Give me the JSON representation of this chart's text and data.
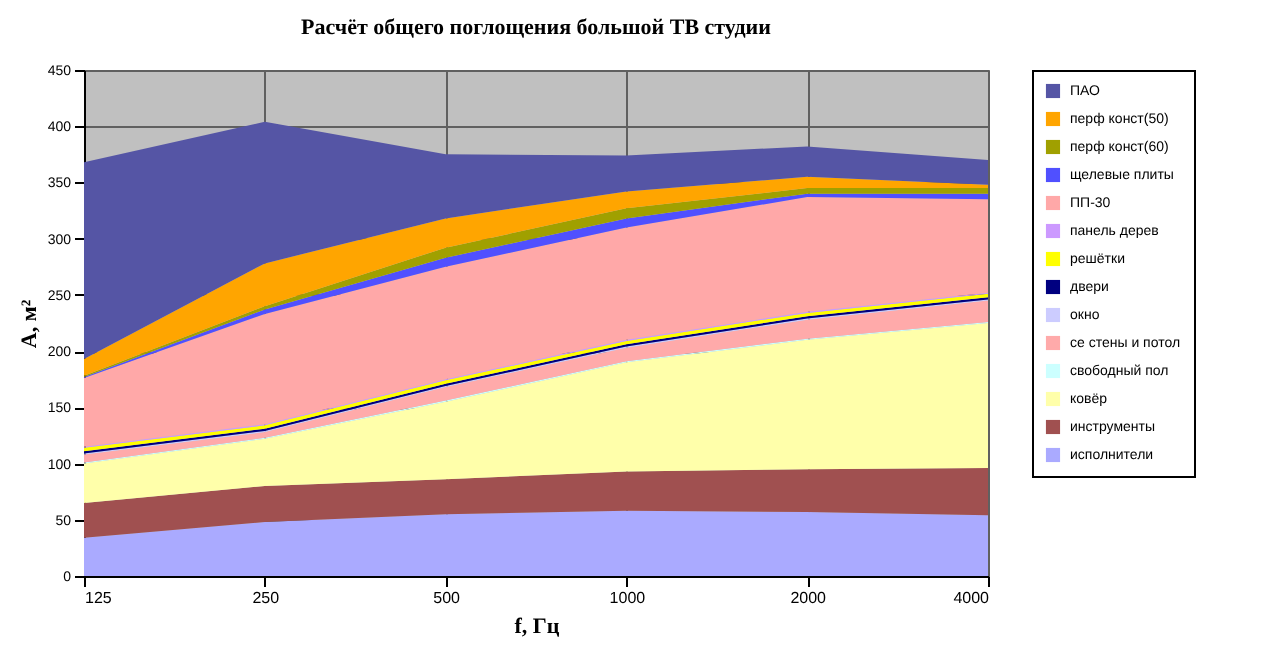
{
  "chart_data": {
    "type": "area",
    "stacked": true,
    "title": "Расчёт общего поглощения большой ТВ студии",
    "xlabel": "f, Гц",
    "ylabel": "A, м²",
    "categories": [
      "125",
      "250",
      "500",
      "1000",
      "2000",
      "4000"
    ],
    "ylim": [
      0,
      450
    ],
    "yticks": [
      0,
      50,
      100,
      150,
      200,
      250,
      300,
      350,
      400,
      450
    ],
    "grid": true,
    "legend": "right",
    "series": [
      {
        "name": "исполнители",
        "color": "#aaaaff",
        "values": [
          34,
          48,
          55,
          58,
          57,
          54
        ]
      },
      {
        "name": "инструменты",
        "color": "#a05050",
        "values": [
          31,
          32,
          31,
          35,
          38,
          42
        ]
      },
      {
        "name": "ковёр",
        "color": "#ffffaa",
        "values": [
          35,
          42,
          69,
          97,
          115,
          129
        ]
      },
      {
        "name": "свободный пол",
        "color": "#ccffff",
        "values": [
          1,
          1,
          1,
          1,
          1,
          1
        ]
      },
      {
        "name": "се стены и потол",
        "color": "#ffaaaa",
        "values": [
          7,
          5,
          12,
          12,
          17,
          19
        ]
      },
      {
        "name": "окно",
        "color": "#ccccff",
        "values": [
          1,
          1,
          1,
          1,
          1,
          1
        ]
      },
      {
        "name": "двери",
        "color": "#000080",
        "values": [
          2,
          2,
          2,
          2,
          2,
          2
        ]
      },
      {
        "name": "решётки",
        "color": "#ffff00",
        "values": [
          3,
          3,
          3,
          3,
          3,
          3
        ]
      },
      {
        "name": "панель дерев",
        "color": "#cc99ff",
        "values": [
          1,
          1,
          1,
          1,
          1,
          1
        ]
      },
      {
        "name": "ПП-30",
        "color": "#ffa8a8",
        "values": [
          61,
          98,
          100,
          100,
          102,
          83
        ]
      },
      {
        "name": "щелевые плиты",
        "color": "#5050ff",
        "values": [
          1,
          4,
          8,
          8,
          3,
          5
        ]
      },
      {
        "name": "перф конст(60)",
        "color": "#a0a000",
        "values": [
          1,
          3,
          9,
          9,
          5,
          5
        ]
      },
      {
        "name": "перф конст(50)",
        "color": "#ffa500",
        "values": [
          15,
          38,
          26,
          15,
          10,
          3
        ]
      },
      {
        "name": "ПАО",
        "color": "#5555a5",
        "values": [
          175,
          126,
          57,
          32,
          27,
          22
        ]
      }
    ]
  }
}
